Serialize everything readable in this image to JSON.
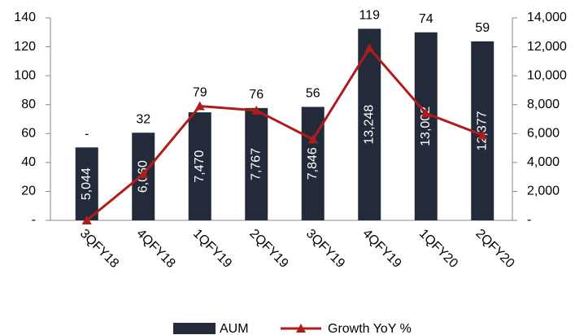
{
  "chart_data": {
    "type": "combo",
    "categories": [
      "3QFY18",
      "4QFY18",
      "1QFY19",
      "2QFY19",
      "3QFY19",
      "4QFY19",
      "1QFY20",
      "2QFY20"
    ],
    "series": [
      {
        "name": "AUM",
        "type": "bar",
        "axis": "y2",
        "color": "#232b3a",
        "values": [
          5044,
          6060,
          7470,
          7767,
          7846,
          13248,
          13002,
          12377
        ],
        "value_labels": [
          "5,044",
          "6,060",
          "7,470",
          "7,767",
          "7,846",
          "13,248",
          "13,002",
          "12,377"
        ]
      },
      {
        "name": "Growth YoY %",
        "type": "line",
        "color": "#b01c1c",
        "values": [
          0,
          32,
          79,
          76,
          56,
          119,
          74,
          59
        ],
        "value_labels": [
          "-",
          "32",
          "79",
          "76",
          "56",
          "119",
          "74",
          "59"
        ]
      }
    ],
    "ylim": [
      0,
      140
    ],
    "yticks": [
      {
        "value": 0,
        "label": "-"
      },
      20,
      40,
      60,
      80,
      100,
      120,
      140
    ],
    "y2lim": [
      0,
      14000
    ],
    "y2ticks": [
      {
        "value": 0,
        "label": "-"
      },
      {
        "value": 2000,
        "label": "2,000"
      },
      {
        "value": 4000,
        "label": "4,000"
      },
      {
        "value": 6000,
        "label": "6,000"
      },
      {
        "value": 8000,
        "label": "8,000"
      },
      {
        "value": 10000,
        "label": "10,000"
      },
      {
        "value": 12000,
        "label": "12,000"
      },
      {
        "value": 14000,
        "label": "14,000"
      }
    ],
    "grid": false,
    "legend": "bottom"
  }
}
